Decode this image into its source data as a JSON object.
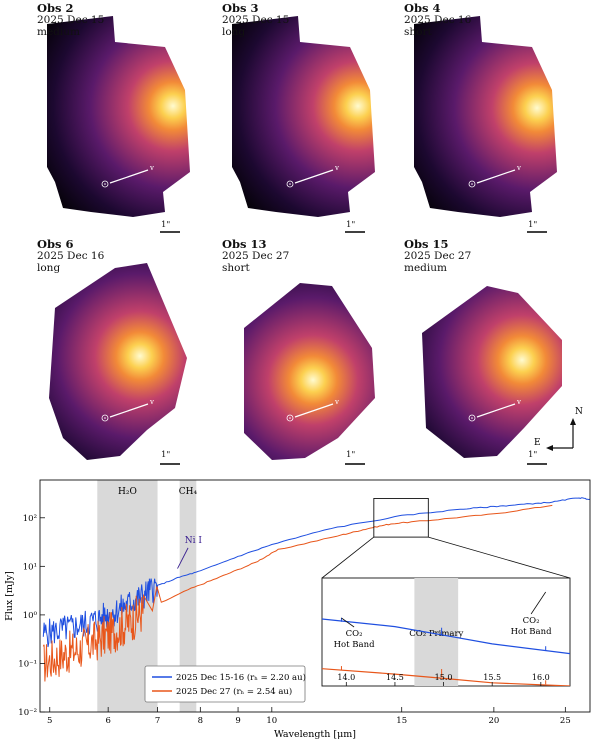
{
  "panels": [
    {
      "obs": "Obs 2",
      "date": "2025 Dec 15",
      "mode": "medium",
      "scale": "1\""
    },
    {
      "obs": "Obs 3",
      "date": "2025 Dec 15",
      "mode": "long",
      "scale": "1\""
    },
    {
      "obs": "Obs 4",
      "date": "2025 Dec 16",
      "mode": "short",
      "scale": "1\""
    },
    {
      "obs": "Obs 6",
      "date": "2025 Dec 16",
      "mode": "long",
      "scale": "1\""
    },
    {
      "obs": "Obs 13",
      "date": "2025 Dec 27",
      "mode": "short",
      "scale": "1\""
    },
    {
      "obs": "Obs 15",
      "date": "2025 Dec 27",
      "mode": "medium",
      "scale": "1\""
    }
  ],
  "vector_labels": {
    "sun": "⊙",
    "velocity": "v"
  },
  "compass": {
    "north": "N",
    "east": "E"
  },
  "colors": {
    "blue": "#1f4fe0",
    "orange": "#e8561a",
    "shade": "#d9d9d9"
  },
  "chart_data": {
    "type": "line",
    "xlabel": "Wavelength [μm]",
    "ylabel": "Flux [mJy]",
    "xscale": "log",
    "yscale": "log",
    "xlim": [
      4.85,
      27
    ],
    "ylim": [
      0.01,
      600
    ],
    "xticks": [
      "5",
      "6",
      "7",
      "8",
      "9",
      "10",
      "15",
      "20",
      "25"
    ],
    "yticks": [
      "10⁻²",
      "10⁻¹",
      "10⁰",
      "10¹",
      "10²"
    ],
    "bands": [
      {
        "label": "H₂O",
        "range": [
          5.8,
          7.0
        ]
      },
      {
        "label": "CH₄",
        "range": [
          7.5,
          7.9
        ]
      }
    ],
    "annotations": [
      {
        "text": "Ni I",
        "x": 7.5,
        "y": 9
      }
    ],
    "legend": {
      "position": "bottom-left"
    },
    "series": [
      {
        "name": "2025 Dec 15-16 (rₕ = 2.20 au)",
        "x": [
          4.9,
          5.2,
          5.5,
          5.8,
          6.1,
          6.4,
          6.7,
          7.0,
          7.5,
          8,
          9,
          10,
          12,
          15,
          18,
          20,
          22,
          24,
          26,
          27
        ],
        "y": [
          0.4,
          0.5,
          0.6,
          0.8,
          1.1,
          1.7,
          2.5,
          4,
          6,
          8,
          16,
          28,
          60,
          110,
          150,
          170,
          190,
          210,
          260,
          240
        ]
      },
      {
        "name": "2025 Dec 27 (rₕ = 2.54 au)",
        "x": [
          4.9,
          5.2,
          5.5,
          5.8,
          6.1,
          6.4,
          6.7,
          7.7,
          8.5,
          9.5,
          10.2,
          12.5,
          13.5,
          14.5,
          16.5,
          20,
          24
        ],
        "y": [
          0.1,
          0.15,
          0.2,
          0.3,
          0.45,
          0.7,
          1.2,
          3.3,
          6,
          12,
          22,
          45,
          60,
          75,
          90,
          120,
          180
        ]
      }
    ],
    "inset": {
      "xlim": [
        13.75,
        16.3
      ],
      "xticks": [
        "14.0",
        "14.5",
        "15.0",
        "15.5",
        "16.0"
      ],
      "band": {
        "label": "CO₂ Primary",
        "range": [
          14.7,
          15.15
        ]
      },
      "labels": [
        "CO₂ Hot Band",
        "CO₂ Hot Band"
      ],
      "series": [
        {
          "x": [
            13.75,
            14.5,
            15.0,
            15.5,
            16.3
          ],
          "y": [
            0.62,
            0.55,
            0.47,
            0.39,
            0.3
          ]
        },
        {
          "x": [
            13.75,
            14.5,
            15.0,
            15.5,
            16.3
          ],
          "y": [
            0.16,
            0.11,
            0.07,
            0.03,
            0.0
          ]
        }
      ]
    }
  }
}
